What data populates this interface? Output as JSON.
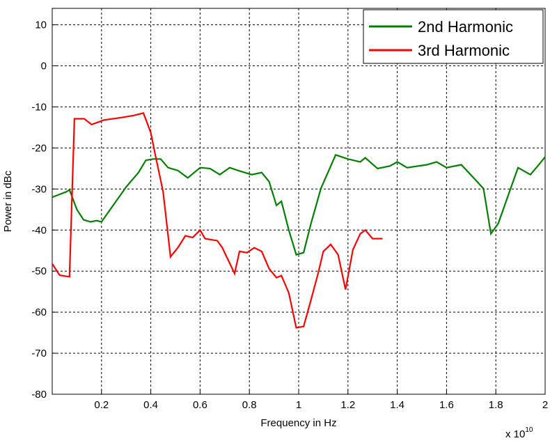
{
  "chart_data": {
    "type": "line",
    "xlabel": "Frequency in Hz",
    "ylabel": "Power in dBc",
    "x_multiplier": {
      "base": "x 10",
      "exponent": "10"
    },
    "xlim": [
      0,
      2
    ],
    "ylim": [
      -80,
      14
    ],
    "xticks": [
      0.2,
      0.4,
      0.6,
      0.8,
      1,
      1.2,
      1.4,
      1.6,
      1.8,
      2
    ],
    "yticks": [
      10,
      0,
      -10,
      -20,
      -30,
      -40,
      -50,
      -60,
      -70,
      -80
    ],
    "grid": true,
    "legend": "upper right",
    "series": [
      {
        "name": "2nd Harmonic",
        "color": "#008000",
        "x": [
          0,
          0.057,
          0.07,
          0.1,
          0.127,
          0.156,
          0.18,
          0.2,
          0.24,
          0.3,
          0.35,
          0.38,
          0.41,
          0.44,
          0.47,
          0.51,
          0.55,
          0.6,
          0.64,
          0.68,
          0.72,
          0.76,
          0.81,
          0.85,
          0.88,
          0.91,
          0.93,
          0.96,
          0.99,
          1.02,
          1.05,
          1.09,
          1.15,
          1.2,
          1.25,
          1.27,
          1.32,
          1.37,
          1.4,
          1.44,
          1.52,
          1.56,
          1.6,
          1.66,
          1.71,
          1.75,
          1.78,
          1.81,
          1.86,
          1.89,
          1.94,
          1.97,
          2.0
        ],
        "values": [
          -32,
          -30.7,
          -30.2,
          -35,
          -37.5,
          -38,
          -37.7,
          -38,
          -34.6,
          -29.5,
          -26,
          -23,
          -22.7,
          -22.7,
          -24.8,
          -25.5,
          -27.3,
          -24.8,
          -25,
          -26.5,
          -24.8,
          -25.6,
          -26.5,
          -26,
          -28.2,
          -34,
          -33,
          -40,
          -46,
          -45.5,
          -38.4,
          -29.9,
          -21.7,
          -22.7,
          -23.4,
          -22.4,
          -25,
          -24.4,
          -23.4,
          -24.8,
          -24.1,
          -23.4,
          -24.8,
          -24.1,
          -27.3,
          -29.9,
          -40.9,
          -38.4,
          -29.9,
          -24.8,
          -26.5,
          -24.4,
          -22.2
        ]
      },
      {
        "name": "3rd Harmonic",
        "color": "#ff0000",
        "x": [
          0,
          0.03,
          0.07,
          0.09,
          0.13,
          0.16,
          0.21,
          0.28,
          0.33,
          0.37,
          0.4,
          0.42,
          0.45,
          0.48,
          0.51,
          0.54,
          0.57,
          0.6,
          0.62,
          0.67,
          0.69,
          0.74,
          0.76,
          0.79,
          0.82,
          0.85,
          0.88,
          0.91,
          0.93,
          0.96,
          0.99,
          1.02,
          1.05,
          1.08,
          1.1,
          1.13,
          1.16,
          1.19,
          1.22,
          1.25,
          1.27,
          1.3,
          1.34
        ],
        "values": [
          -48.2,
          -51,
          -51.4,
          -12.9,
          -12.9,
          -14.3,
          -13.2,
          -12.6,
          -12.1,
          -11.5,
          -16.3,
          -22.2,
          -30.7,
          -46.5,
          -44.3,
          -41.4,
          -41.8,
          -40,
          -42.1,
          -42.6,
          -44.3,
          -50.6,
          -45.2,
          -45.5,
          -44.3,
          -45.2,
          -49.4,
          -51.6,
          -51.1,
          -55.3,
          -63.8,
          -63.5,
          -57,
          -50.3,
          -45.2,
          -43.5,
          -46,
          -54.5,
          -44.8,
          -40.9,
          -40,
          -42.1,
          -42.1
        ]
      }
    ]
  }
}
